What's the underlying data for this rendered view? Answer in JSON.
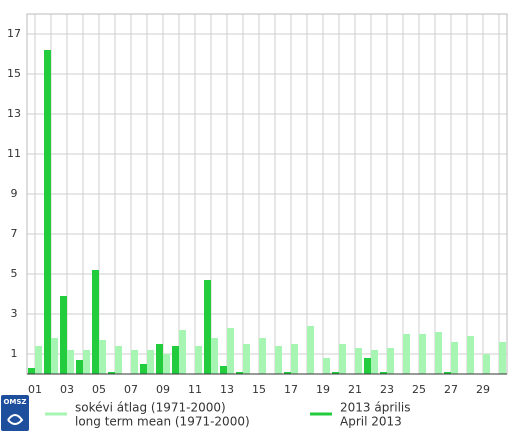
{
  "chart_data": {
    "type": "bar",
    "categories": [
      "01",
      null,
      "03",
      null,
      "05",
      null,
      "07",
      null,
      "09",
      null,
      "11",
      null,
      "13",
      null,
      "15",
      null,
      "17",
      null,
      "19",
      null,
      "21",
      null,
      "23",
      null,
      "25",
      null,
      "27",
      null,
      "29",
      null
    ],
    "series": [
      {
        "name": "2013 április",
        "subname": "April 2013",
        "color": "#22cc3c",
        "values": [
          0.3,
          16.2,
          3.9,
          0.7,
          5.2,
          0.1,
          0,
          0.5,
          1.5,
          1.4,
          0,
          4.7,
          0.4,
          0.1,
          0,
          0,
          0.1,
          0,
          0,
          0.1,
          0,
          0.8,
          0.1,
          0,
          0,
          0,
          0.1,
          0,
          0,
          0
        ]
      },
      {
        "name": "sokévi átlag (1971-2000)",
        "subname": "long term mean (1971-2000)",
        "color": "#a6f5b2",
        "values": [
          1.4,
          1.8,
          1.2,
          1.2,
          1.7,
          1.4,
          1.2,
          1.2,
          1.0,
          2.2,
          1.4,
          1.8,
          2.3,
          1.5,
          1.8,
          1.4,
          1.5,
          2.4,
          0.8,
          1.5,
          1.3,
          1.2,
          1.3,
          2.0,
          2.0,
          2.1,
          1.6,
          1.9,
          1.0,
          1.6
        ]
      }
    ],
    "ylim": [
      0,
      18
    ],
    "yticks": [
      1,
      3,
      5,
      7,
      9,
      11,
      13,
      15,
      17
    ],
    "grid": true
  },
  "logo_text": "OMSZ"
}
